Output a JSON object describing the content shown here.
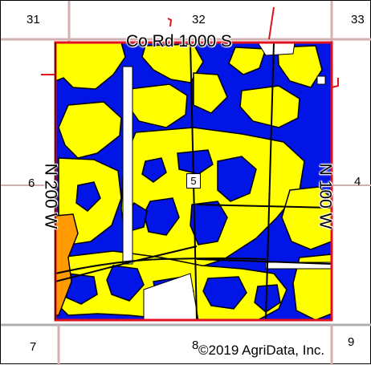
{
  "sections": {
    "nw": "31",
    "n": "32",
    "ne": "33",
    "w": "6",
    "e": "4",
    "sw": "7",
    "s": "8",
    "se": "9",
    "field": "5"
  },
  "roads": {
    "north": "Co Rd 1000 S",
    "west": "N 200 W",
    "east": "N 100 W"
  },
  "copyright": "©2019 AgriData, Inc.",
  "colors": {
    "soil_blue": "#0015e6",
    "soil_yellow": "#ffff00",
    "soil_orange": "#ff9a00",
    "boundary_red": "#e0101e",
    "section_line": "#c8a0a0",
    "road_line": "#9a9a9a"
  }
}
